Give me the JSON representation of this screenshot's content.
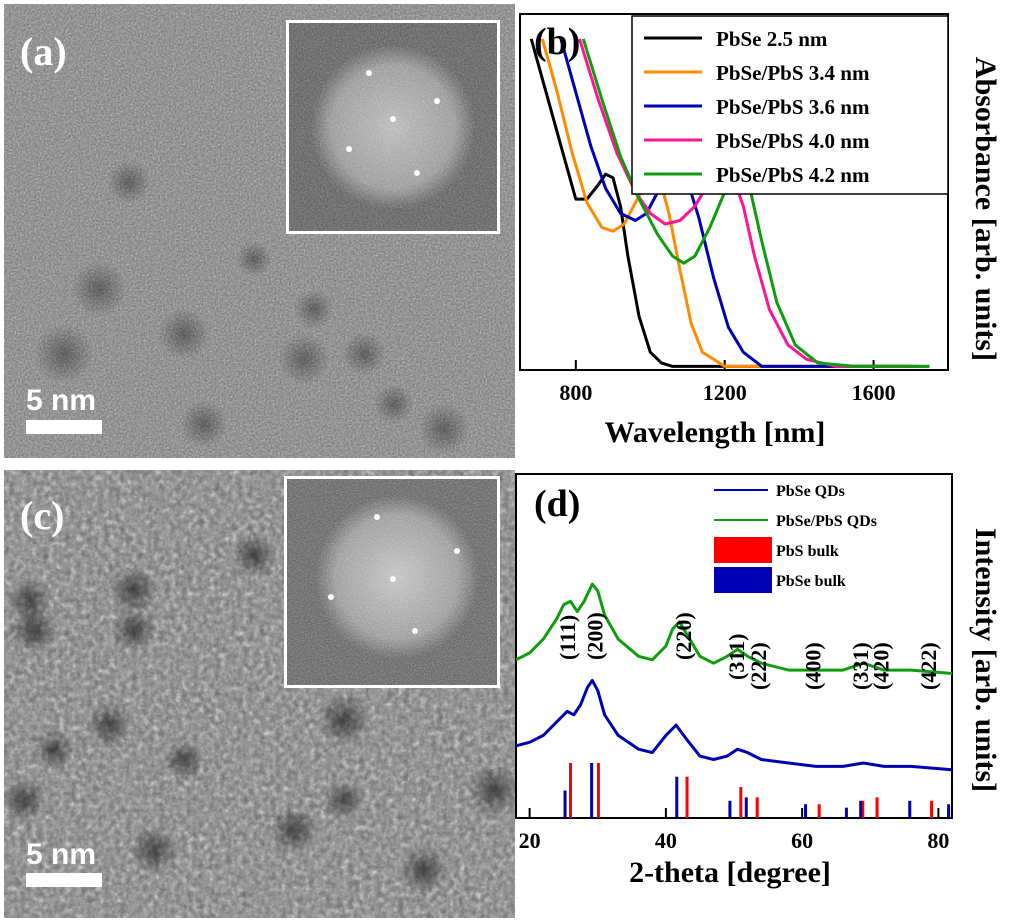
{
  "panels": {
    "a": {
      "label": "(a)",
      "scale": "5 nm"
    },
    "c": {
      "label": "(c)",
      "scale": "5 nm"
    },
    "b": {
      "label": "(b)"
    },
    "d": {
      "label": "(d)"
    }
  },
  "colors": {
    "black": "#000000",
    "orange": "#ff8c00",
    "blue": "#0000b4",
    "magenta": "#ff1493",
    "green": "#0f9d0f",
    "red": "#ff0000"
  },
  "chart_data": [
    {
      "type": "line",
      "panel": "b",
      "xlabel": "Wavelength [nm]",
      "ylabel": "Absorbance [arb. units]",
      "xlim": [
        650,
        1800
      ],
      "xticks": [
        800,
        1200,
        1600
      ],
      "ylim": [
        0,
        1
      ],
      "legend": "top-right",
      "series": [
        {
          "name": "PbSe 2.5 nm",
          "color": "#000000",
          "x": [
            680,
            720,
            760,
            800,
            830,
            860,
            880,
            900,
            920,
            940,
            970,
            1000,
            1030,
            1060,
            1300,
            1600,
            1700
          ],
          "y": [
            0.93,
            0.78,
            0.63,
            0.48,
            0.48,
            0.52,
            0.55,
            0.54,
            0.46,
            0.32,
            0.15,
            0.05,
            0.02,
            0.01,
            0.01,
            0.01,
            0.01
          ]
        },
        {
          "name": "PbSe/PbS 3.4 nm",
          "color": "#ff8c00",
          "x": [
            710,
            750,
            790,
            830,
            870,
            900,
            930,
            960,
            990,
            1010,
            1030,
            1050,
            1080,
            1110,
            1140,
            1200,
            1500,
            1700
          ],
          "y": [
            0.93,
            0.78,
            0.61,
            0.47,
            0.4,
            0.39,
            0.41,
            0.47,
            0.53,
            0.55,
            0.52,
            0.44,
            0.28,
            0.13,
            0.05,
            0.01,
            0.01,
            0.01
          ]
        },
        {
          "name": "PbSe/PbS 3.6 nm",
          "color": "#0000b4",
          "x": [
            760,
            800,
            840,
            880,
            920,
            960,
            990,
            1020,
            1050,
            1075,
            1100,
            1130,
            1170,
            1210,
            1250,
            1300,
            1600,
            1720
          ],
          "y": [
            0.93,
            0.78,
            0.63,
            0.51,
            0.44,
            0.42,
            0.44,
            0.5,
            0.55,
            0.56,
            0.53,
            0.43,
            0.26,
            0.12,
            0.05,
            0.01,
            0.01,
            0.01
          ]
        },
        {
          "name": "PbSe/PbS 4.0 nm",
          "color": "#ff1493",
          "x": [
            810,
            860,
            910,
            960,
            1000,
            1040,
            1080,
            1120,
            1160,
            1190,
            1220,
            1250,
            1280,
            1320,
            1370,
            1420,
            1500,
            1750
          ],
          "y": [
            0.93,
            0.76,
            0.61,
            0.5,
            0.44,
            0.41,
            0.42,
            0.46,
            0.53,
            0.56,
            0.55,
            0.46,
            0.32,
            0.17,
            0.07,
            0.03,
            0.01,
            0.01
          ]
        },
        {
          "name": "PbSe/PbS 4.2 nm",
          "color": "#0f9d0f",
          "x": [
            820,
            870,
            920,
            970,
            1020,
            1060,
            1090,
            1120,
            1160,
            1200,
            1230,
            1250,
            1270,
            1300,
            1340,
            1390,
            1450,
            1550,
            1750
          ],
          "y": [
            0.93,
            0.76,
            0.6,
            0.48,
            0.38,
            0.32,
            0.3,
            0.32,
            0.4,
            0.5,
            0.55,
            0.55,
            0.5,
            0.36,
            0.19,
            0.07,
            0.02,
            0.01,
            0.01
          ]
        }
      ]
    },
    {
      "type": "line",
      "panel": "d",
      "xlabel": "2-theta [degree]",
      "ylabel": "Intensity [arb. units]",
      "xlim": [
        18,
        82
      ],
      "xticks": [
        20,
        40,
        60,
        80
      ],
      "ylim": [
        0,
        1
      ],
      "legend": "top-right",
      "peak_labels": [
        {
          "text": "(111)",
          "x": 25.5
        },
        {
          "text": "(200)",
          "x": 29.5
        },
        {
          "text": "(220)",
          "x": 42.5
        },
        {
          "text": "(311)",
          "x": 50.3
        },
        {
          "text": "(222)",
          "x": 53.5
        },
        {
          "text": "(400)",
          "x": 61.5
        },
        {
          "text": "(331)",
          "x": 68.5
        },
        {
          "text": "(420)",
          "x": 71.5
        },
        {
          "text": "(422)",
          "x": 78.5
        }
      ],
      "series": [
        {
          "name": "PbSe QDs",
          "color": "#0000b4",
          "x": [
            18,
            20,
            22,
            24,
            25.5,
            26.5,
            27.5,
            28.5,
            29.2,
            30,
            31,
            33,
            36,
            38,
            40,
            41.5,
            43,
            45,
            47,
            49,
            50.5,
            52,
            54,
            58,
            62,
            66,
            69,
            72,
            76,
            82
          ],
          "y": [
            0.21,
            0.22,
            0.24,
            0.28,
            0.31,
            0.3,
            0.33,
            0.38,
            0.4,
            0.37,
            0.3,
            0.24,
            0.2,
            0.19,
            0.24,
            0.27,
            0.23,
            0.18,
            0.17,
            0.18,
            0.2,
            0.19,
            0.17,
            0.16,
            0.15,
            0.15,
            0.16,
            0.15,
            0.15,
            0.14
          ]
        },
        {
          "name": "PbSe/PbS QDs",
          "color": "#0f9d0f",
          "x": [
            18,
            20,
            22,
            24,
            25,
            26,
            27,
            28,
            29.2,
            30,
            31,
            33,
            36,
            38,
            40,
            41,
            42,
            43.5,
            45,
            47,
            49,
            50.5,
            52,
            54,
            58,
            62,
            66,
            69,
            72,
            76,
            82
          ],
          "y": [
            0.46,
            0.48,
            0.52,
            0.58,
            0.62,
            0.63,
            0.6,
            0.63,
            0.68,
            0.66,
            0.59,
            0.52,
            0.47,
            0.46,
            0.5,
            0.55,
            0.57,
            0.52,
            0.47,
            0.45,
            0.47,
            0.49,
            0.47,
            0.45,
            0.43,
            0.43,
            0.43,
            0.45,
            0.43,
            0.43,
            0.42
          ]
        }
      ],
      "references": [
        {
          "name": "PbS bulk",
          "color": "#ff0000",
          "x": [
            26.0,
            30.1,
            43.1,
            51.0,
            53.4,
            62.5,
            68.9,
            71.0,
            79.0
          ],
          "heights": [
            0.16,
            0.16,
            0.12,
            0.09,
            0.06,
            0.04,
            0.05,
            0.06,
            0.05
          ]
        },
        {
          "name": "PbSe bulk",
          "color": "#0000b4",
          "x": [
            25.2,
            29.1,
            41.6,
            49.4,
            51.8,
            60.5,
            66.5,
            68.6,
            75.8,
            81.5
          ],
          "heights": [
            0.08,
            0.16,
            0.12,
            0.05,
            0.06,
            0.04,
            0.03,
            0.05,
            0.05,
            0.04
          ]
        }
      ]
    }
  ]
}
